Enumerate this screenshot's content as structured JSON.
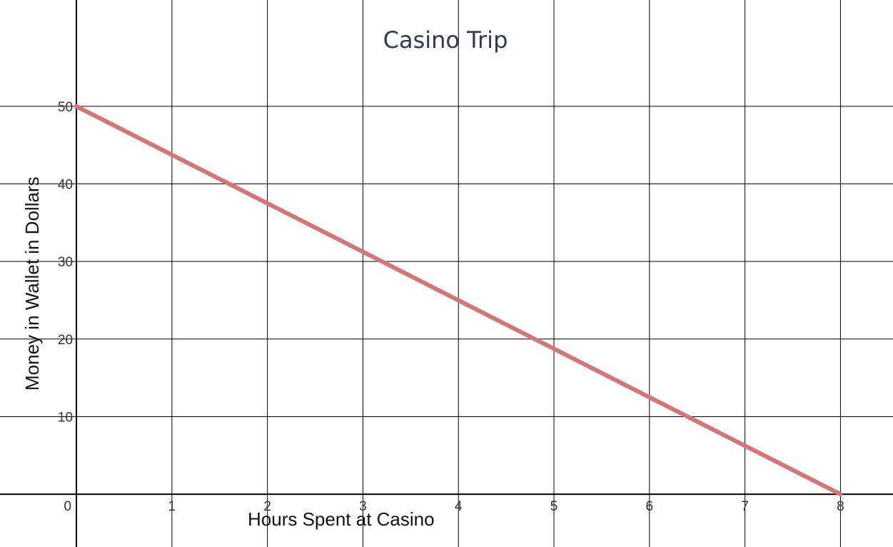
{
  "chart_data": {
    "type": "line",
    "title": "Casino Trip",
    "xlabel": "Hours Spent at Casino",
    "ylabel": "Money in Wallet in Dollars",
    "xlim": [
      -0.8,
      8.55
    ],
    "ylim": [
      -6.8,
      63.7
    ],
    "x_ticks": [
      1,
      2,
      3,
      4,
      5,
      6,
      7,
      8
    ],
    "y_ticks": [
      10,
      20,
      30,
      40,
      50
    ],
    "origin_label": "0",
    "grid": true,
    "series": [
      {
        "x": [
          0,
          8
        ],
        "y": [
          50,
          0
        ]
      }
    ],
    "colors": {
      "line": "#d47676",
      "grid": "#000000",
      "title": "#2f3b52"
    }
  }
}
